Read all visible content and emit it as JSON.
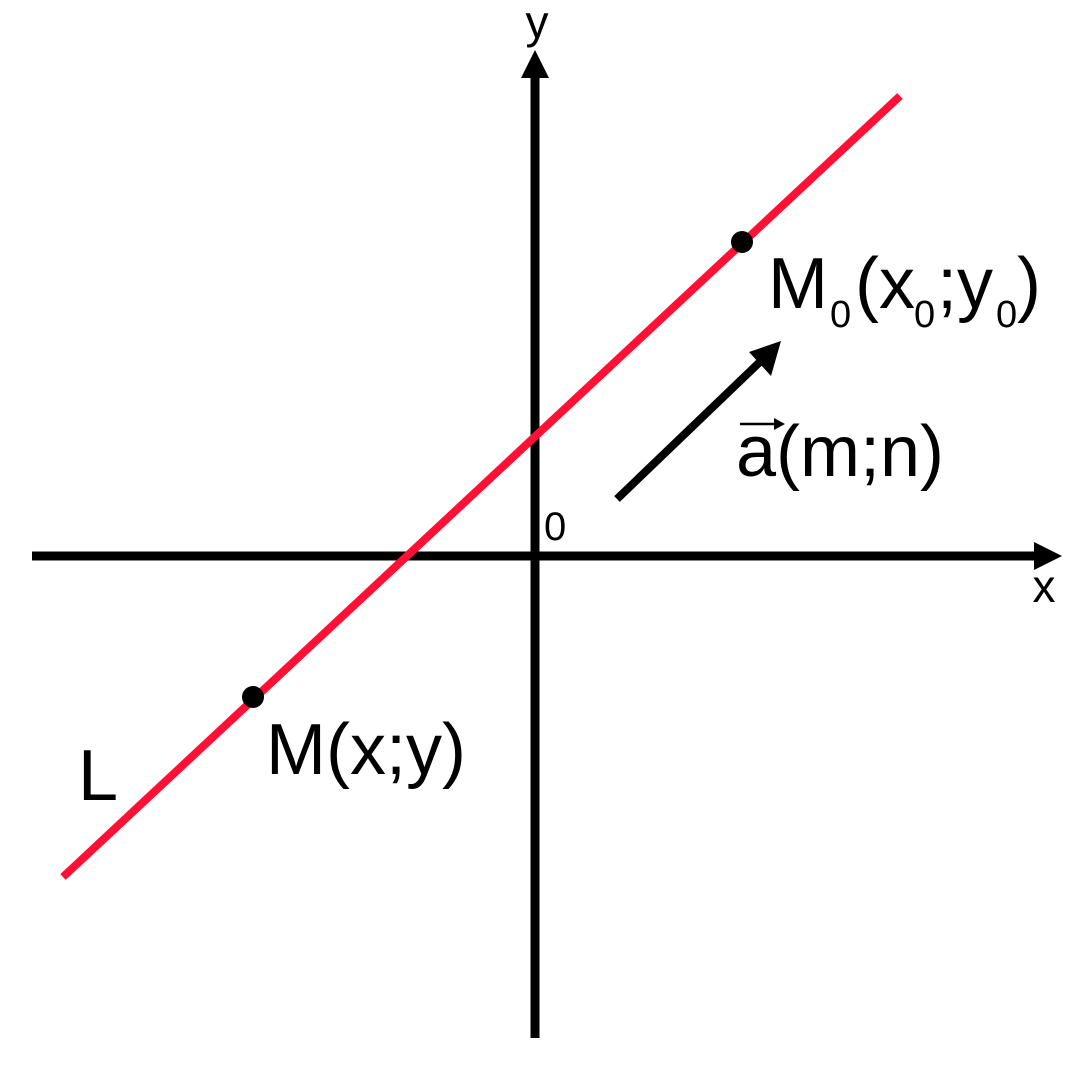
{
  "diagram": {
    "axis_x_label": "x",
    "axis_y_label": "y",
    "origin_label": "0",
    "line_label": "L",
    "point_m0": {
      "main": "M",
      "sub_1": "0",
      "open_x": "(x",
      "sub_2": "0",
      "sep_y": ";y",
      "sub_3": "0",
      "close": ")"
    },
    "point_m": "M(x;y)",
    "vector": {
      "letter": "a",
      "coords": "(m;n)"
    }
  },
  "colors": {
    "line": "#ff1034",
    "axes": "#000000",
    "points": "#000000",
    "vector": "#000000"
  }
}
